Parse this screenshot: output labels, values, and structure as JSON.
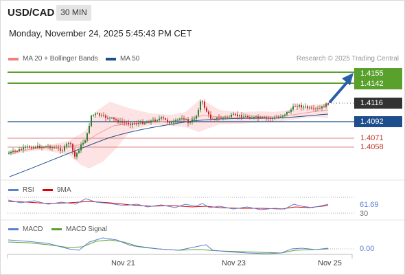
{
  "header": {
    "symbol": "USD/CAD",
    "timeframe": "30 MIN",
    "datetime": "Monday, November 24, 2025 5:45:43 PM CET"
  },
  "legend": {
    "bb_label": "MA 20 + Bollinger Bands",
    "ma50_label": "MA 50",
    "credit": "Research © 2025 Trading Central",
    "rsi_label": "RSI",
    "rsi_ma_label": "9MA",
    "macd_label": "MACD",
    "macd_signal_label": "MACD Signal"
  },
  "colors": {
    "bb": "#f08080",
    "ma50": "#1f4e8c",
    "resistance": "#5aa02c",
    "support": "#c0392b",
    "rsi": "#5b7fd4",
    "rsi_ma": "#e00000",
    "macd": "#5b7fd4",
    "macd_signal": "#5aa02c"
  },
  "levels": {
    "r2": "1.4155",
    "r1": "1.4142",
    "current": "1.4116",
    "pivot": "1.4092",
    "s1": "1.4071",
    "s2": "1.4058"
  },
  "rsi": {
    "value": "61.69",
    "lower_level": "30"
  },
  "macd": {
    "value": "0.00"
  },
  "x_axis": {
    "ticks": [
      "Nov 21",
      "Nov 23",
      "Nov 25"
    ]
  }
}
